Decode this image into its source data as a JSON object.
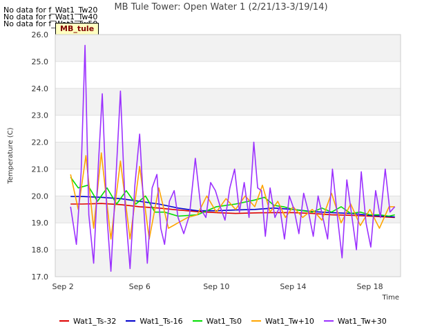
{
  "chart_data": {
    "type": "line",
    "title": "MB Tule Tower: Open Water 1 (2/21/13-3/19/14)",
    "xlabel": "Time",
    "ylabel": "Temperature (C)",
    "xlim": [
      1.6,
      19.6
    ],
    "ylim": [
      17.0,
      26.0
    ],
    "x_ticks": [
      2,
      6,
      10,
      14,
      18
    ],
    "x_tick_labels": [
      "Sep 2",
      "Sep 6",
      "Sep 10",
      "Sep 14",
      "Sep 18"
    ],
    "y_ticks": [
      17.0,
      18.0,
      19.0,
      20.0,
      21.0,
      22.0,
      23.0,
      24.0,
      25.0,
      26.0
    ],
    "y_tick_labels": [
      "17.0",
      "18.0",
      "19.0",
      "20.0",
      "21.0",
      "22.0",
      "23.0",
      "24.0",
      "25.0",
      "26.0"
    ],
    "grid": "horizontal bands",
    "legend_position": "bottom",
    "no_data_messages": [
      "No data for f_Wat1_Tw20",
      "No data for f_Wat1_Tw40",
      "No data for f_Wat1_Tw50"
    ],
    "tag": "MB_tule",
    "series": [
      {
        "name": "Wat1_Ts-32",
        "color": "#dd0000",
        "x": [
          2.4,
          3,
          4,
          5,
          6,
          7,
          8,
          9,
          10,
          11,
          12,
          13,
          14,
          15,
          16,
          17,
          18,
          19.3
        ],
        "values": [
          19.7,
          19.7,
          19.72,
          19.68,
          19.6,
          19.55,
          19.48,
          19.42,
          19.38,
          19.35,
          19.37,
          19.38,
          19.38,
          19.35,
          19.3,
          19.28,
          19.25,
          19.2
        ]
      },
      {
        "name": "Wat1_Ts-16",
        "color": "#0000cc",
        "x": [
          2.4,
          3,
          4,
          5,
          6,
          7,
          8,
          9,
          10,
          11,
          12,
          13,
          14,
          15,
          16,
          17,
          18,
          19.3
        ],
        "values": [
          19.98,
          19.98,
          19.95,
          19.9,
          19.8,
          19.7,
          19.55,
          19.45,
          19.45,
          19.48,
          19.5,
          19.55,
          19.5,
          19.42,
          19.38,
          19.35,
          19.28,
          19.22
        ]
      },
      {
        "name": "Wat1_Ts0",
        "color": "#00dd00",
        "x": [
          2.4,
          2.8,
          3.3,
          3.8,
          4.3,
          4.8,
          5.3,
          5.8,
          6.3,
          6.8,
          7.3,
          8,
          9,
          10,
          11,
          12,
          12.5,
          13,
          13.5,
          14,
          14.5,
          15,
          15.5,
          16,
          16.5,
          17,
          17.5,
          18,
          18.5,
          19,
          19.3
        ],
        "values": [
          20.7,
          20.3,
          20.4,
          19.8,
          20.3,
          19.7,
          20.2,
          19.7,
          20.0,
          19.4,
          19.4,
          19.25,
          19.3,
          19.6,
          19.7,
          19.85,
          19.95,
          19.65,
          19.6,
          19.5,
          19.45,
          19.4,
          19.55,
          19.4,
          19.6,
          19.35,
          19.4,
          19.3,
          19.3,
          19.25,
          19.3
        ]
      },
      {
        "name": "Wat1_Tw+10",
        "color": "#ffa500",
        "x": [
          2.4,
          2.8,
          3.2,
          3.6,
          4.0,
          4.5,
          5.0,
          5.5,
          6.0,
          6.5,
          7.0,
          7.5,
          8.0,
          8.5,
          9.0,
          9.5,
          10.0,
          10.5,
          11.0,
          11.5,
          12.0,
          12.4,
          12.8,
          13.2,
          13.6,
          14.0,
          14.5,
          15.0,
          15.5,
          16.0,
          16.5,
          17.0,
          17.5,
          18.0,
          18.5,
          19.0,
          19.3
        ],
        "values": [
          20.8,
          19.5,
          21.5,
          18.8,
          21.6,
          18.4,
          21.3,
          18.4,
          21.1,
          18.4,
          20.3,
          18.8,
          19.0,
          19.2,
          19.3,
          20.0,
          19.4,
          19.9,
          19.5,
          20.0,
          19.6,
          20.4,
          19.4,
          19.8,
          19.2,
          19.6,
          19.2,
          19.5,
          19.1,
          20.1,
          19.0,
          19.7,
          18.9,
          19.5,
          18.8,
          19.6,
          19.6
        ]
      },
      {
        "name": "Wat1_Tw+30",
        "color": "#9b30ff",
        "x": [
          2.4,
          2.7,
          2.95,
          3.15,
          3.35,
          3.6,
          3.85,
          4.05,
          4.3,
          4.5,
          4.75,
          5.0,
          5.25,
          5.5,
          5.75,
          6.0,
          6.2,
          6.4,
          6.65,
          6.9,
          7.1,
          7.3,
          7.55,
          7.8,
          8.0,
          8.3,
          8.6,
          8.9,
          9.2,
          9.45,
          9.7,
          9.95,
          10.2,
          10.45,
          10.7,
          10.95,
          11.2,
          11.45,
          11.7,
          11.95,
          12.15,
          12.35,
          12.55,
          12.8,
          13.05,
          13.3,
          13.55,
          13.8,
          14.05,
          14.3,
          14.55,
          14.8,
          15.05,
          15.3,
          15.55,
          15.8,
          16.05,
          16.3,
          16.55,
          16.8,
          17.05,
          17.3,
          17.55,
          17.8,
          18.05,
          18.3,
          18.55,
          18.8,
          19.05,
          19.3
        ],
        "values": [
          19.6,
          18.2,
          20.9,
          25.6,
          19.3,
          17.5,
          21.2,
          23.8,
          19.2,
          17.2,
          20.5,
          23.9,
          19.5,
          17.3,
          20.4,
          22.3,
          19.7,
          17.5,
          20.3,
          20.8,
          18.8,
          18.2,
          19.8,
          20.2,
          19.2,
          18.6,
          19.3,
          21.4,
          19.5,
          19.2,
          20.5,
          20.2,
          19.6,
          19.1,
          20.3,
          21.0,
          19.4,
          20.5,
          19.2,
          22.0,
          20.3,
          20.2,
          18.5,
          20.3,
          19.2,
          19.6,
          18.4,
          20.0,
          19.5,
          18.6,
          20.1,
          19.4,
          18.5,
          20.0,
          19.2,
          18.4,
          21.0,
          19.3,
          17.7,
          20.6,
          19.3,
          18.0,
          20.9,
          19.0,
          18.1,
          20.2,
          19.2,
          21.0,
          19.4,
          19.6
        ]
      }
    ]
  }
}
